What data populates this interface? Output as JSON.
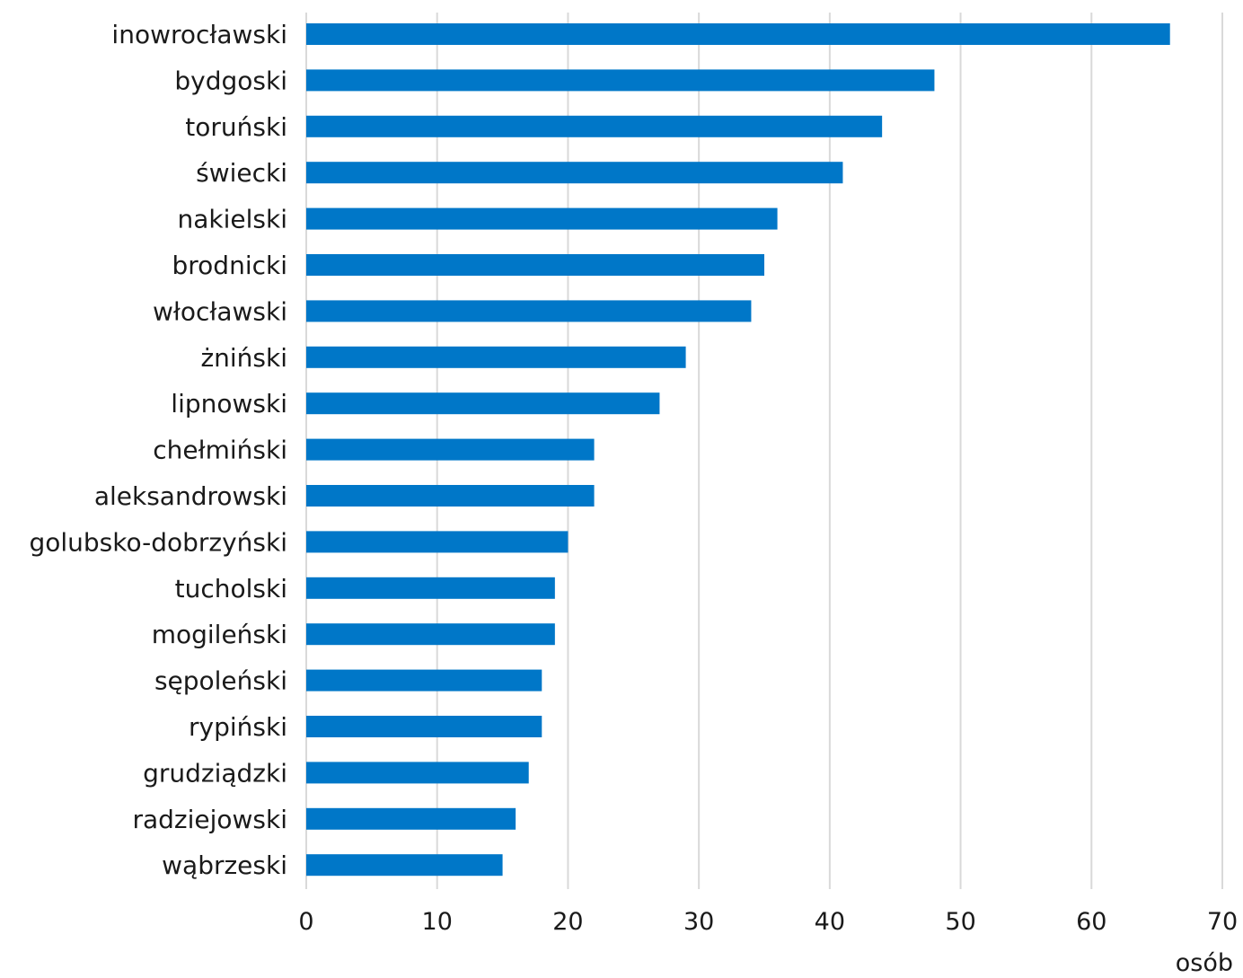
{
  "chart_data": {
    "type": "bar",
    "orientation": "horizontal",
    "categories": [
      "inowrocławski",
      "bydgoski",
      "toruński",
      "świecki",
      "nakielski",
      "brodnicki",
      "włocławski",
      "żniński",
      "lipnowski",
      "chełmiński",
      "aleksandrowski",
      "golubsko-dobrzyński",
      "tucholski",
      "mogileński",
      "sępoleński",
      "rypiński",
      "grudziądzki",
      "radziejowski",
      "wąbrzeski"
    ],
    "values": [
      66,
      48,
      44,
      41,
      36,
      35,
      34,
      29,
      27,
      22,
      22,
      20,
      19,
      19,
      18,
      18,
      17,
      16,
      15
    ],
    "xlim": [
      0,
      70
    ],
    "xticks": [
      0,
      10,
      20,
      30,
      40,
      50,
      60,
      70
    ],
    "xlabel": "osób",
    "grid": "vertical",
    "legend": "none",
    "bar_color": "#0077C8",
    "grid_color": "#D9D9D9"
  }
}
